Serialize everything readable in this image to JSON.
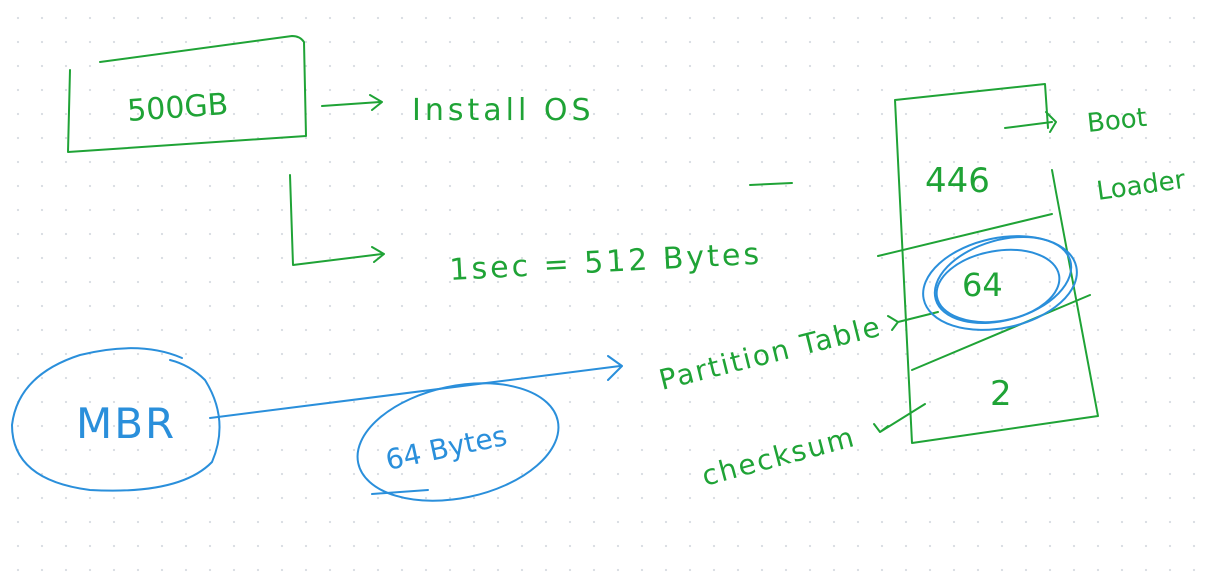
{
  "colors": {
    "green_ink": "#1fa336",
    "blue_ink": "#2a8fdb",
    "background": "#ffffff"
  },
  "labels": {
    "disk_size": "500GB",
    "install_os": "Install OS",
    "sector": "1sec = 512 Bytes",
    "mbr": "MBR",
    "mbr_size": "64 Bytes",
    "partition_table": "Partition Table",
    "checksum": "checksum",
    "boot_loader_line1": "Boot",
    "boot_loader_line2": "Loader",
    "seg_boot": "446",
    "seg_partition": "64",
    "seg_checksum": "2"
  }
}
